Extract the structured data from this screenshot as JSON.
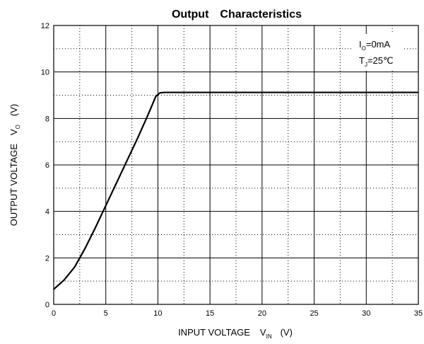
{
  "chart_data": {
    "type": "line",
    "title_part1": "Output",
    "title_part2": "Characteristics",
    "xlabel": "INPUT VOLTAGE",
    "xlabel_symbol": "V",
    "xlabel_subscript": "IN",
    "xlabel_unit": "(V)",
    "ylabel": "OUTPUT VOLTAGE",
    "ylabel_symbol": "V",
    "ylabel_subscript": "O",
    "ylabel_unit": "(V)",
    "xlim": [
      0,
      35
    ],
    "ylim": [
      0,
      12
    ],
    "x_ticks": [
      "0",
      "5",
      "10",
      "15",
      "20",
      "25",
      "30",
      "35"
    ],
    "y_ticks": [
      "0",
      "2",
      "4",
      "6",
      "8",
      "10",
      "12"
    ],
    "grid": "major solid, minor dotted",
    "annotations": {
      "line1_sym": "I",
      "line1_sub": "O",
      "line1_rest": "=0mA",
      "line2_sym": "T",
      "line2_sub": "J",
      "line2_rest": "=25℃",
      "placement": "top-right"
    },
    "series": [
      {
        "x": [
          0,
          1,
          2,
          3,
          4,
          5,
          6,
          7,
          8,
          9,
          9.8,
          10.2,
          10.6,
          12,
          15,
          20,
          25,
          30,
          35
        ],
        "y": [
          0.65,
          1.05,
          1.6,
          2.4,
          3.3,
          4.25,
          5.2,
          6.15,
          7.1,
          8.1,
          8.95,
          9.1,
          9.12,
          9.12,
          9.12,
          9.12,
          9.12,
          9.12,
          9.12
        ]
      }
    ]
  }
}
